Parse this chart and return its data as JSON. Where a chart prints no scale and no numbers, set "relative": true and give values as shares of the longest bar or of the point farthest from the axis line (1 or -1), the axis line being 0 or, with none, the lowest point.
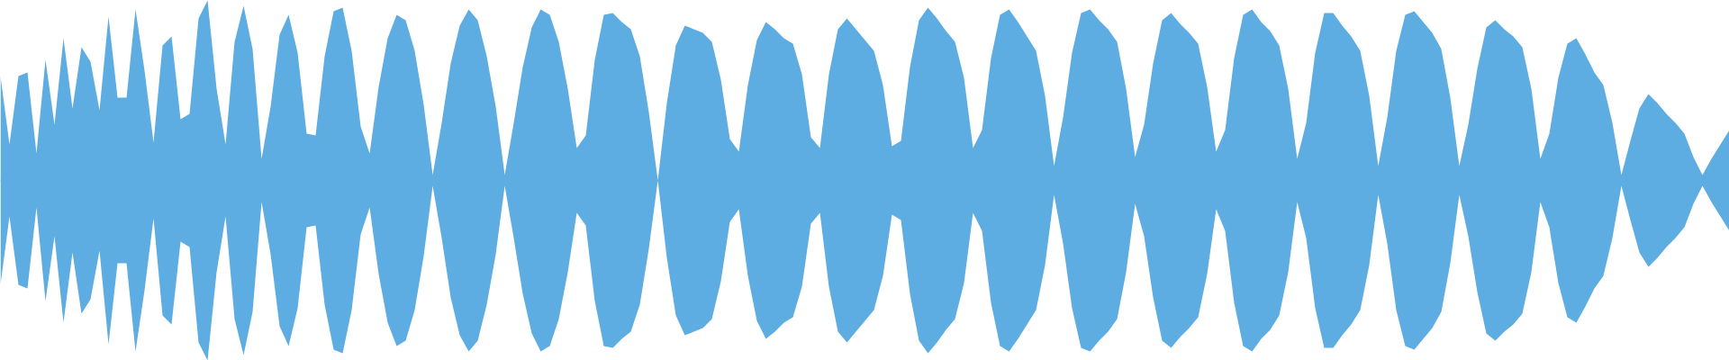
{
  "chart_data": {
    "type": "area",
    "relative": true,
    "ref_lines": [
      {
        "axis": "y",
        "value": 0,
        "color": "#5dade2"
      }
    ],
    "categories": [
      null,
      null,
      null,
      null,
      null,
      null,
      null,
      null,
      null,
      null,
      null,
      null,
      null,
      null,
      null,
      null,
      null,
      null,
      null,
      null,
      null,
      null,
      null,
      null,
      null,
      null,
      null,
      null,
      null,
      null,
      null,
      null,
      null,
      null,
      null,
      null,
      null,
      null,
      null,
      null,
      null,
      null,
      null,
      null,
      null,
      null,
      null,
      null,
      null,
      null,
      null,
      null,
      null,
      null,
      null,
      null,
      null,
      null,
      null,
      null,
      null,
      null,
      null,
      null,
      null,
      null,
      null,
      null,
      null,
      null,
      null,
      null,
      null,
      null,
      null,
      null,
      null,
      null,
      null,
      null,
      null,
      null,
      null,
      null,
      null,
      null,
      null,
      null,
      null,
      null,
      null,
      null,
      null,
      null,
      null,
      null,
      null,
      null,
      null,
      null,
      null,
      null,
      null,
      null,
      null,
      null,
      null,
      null,
      null,
      null,
      null,
      null,
      null,
      null,
      null,
      null,
      null,
      null,
      null,
      null,
      null,
      null,
      null,
      null,
      null,
      null,
      null,
      null,
      null,
      null,
      null,
      null,
      null,
      null,
      null,
      null,
      null,
      null,
      null,
      null,
      null,
      null,
      null,
      null,
      null,
      null,
      null,
      null,
      null,
      null,
      null,
      null,
      null,
      null,
      null,
      null,
      null,
      null,
      null,
      null,
      null,
      null,
      null,
      null,
      null,
      null,
      null,
      null,
      null,
      null,
      null,
      null,
      null,
      null,
      null,
      null,
      null,
      null,
      null,
      null,
      null,
      null,
      null,
      null,
      null,
      null,
      null,
      null,
      null,
      null,
      null,
      null,
      null
    ],
    "series": [
      {
        "color": "#5dade2",
        "values": [
          0.58,
          0.2,
          0.58,
          0.6,
          0.15,
          0.67,
          0.31,
          0.79,
          0.4,
          0.74,
          0.66,
          0.39,
          0.91,
          0.46,
          0.46,
          0.95,
          0.61,
          0.21,
          0.75,
          0.8,
          0.34,
          0.37,
          0.9,
          1.0,
          0.51,
          0.2,
          0.77,
          0.97,
          0.73,
          0.12,
          0.41,
          0.81,
          0.92,
          0.71,
          0.26,
          0.25,
          0.69,
          0.94,
          0.96,
          0.72,
          0.3,
          0.15,
          0.52,
          0.79,
          0.92,
          0.89,
          0.72,
          0.42,
          0.03,
          0.32,
          0.65,
          0.86,
          0.95,
          0.89,
          0.69,
          0.41,
          0.03,
          0.32,
          0.63,
          0.85,
          0.95,
          0.92,
          0.77,
          0.51,
          0.18,
          0.25,
          0.67,
          0.92,
          0.93,
          0.88,
          0.84,
          0.69,
          0.38,
          0,
          0.43,
          0.75,
          0.86,
          0.84,
          0.82,
          0.77,
          0.56,
          0.23,
          0.16,
          0.53,
          0.78,
          0.88,
          0.84,
          0.79,
          0.76,
          0.59,
          0.24,
          0.18,
          0.59,
          0.84,
          0.9,
          0.84,
          0.78,
          0.72,
          0.53,
          0.19,
          0.22,
          0.63,
          0.89,
          0.96,
          0.9,
          0.83,
          0.77,
          0.57,
          0.18,
          0.28,
          0.68,
          0.92,
          0.95,
          0.88,
          0.8,
          0.72,
          0.47,
          0.08,
          0.35,
          0.71,
          0.93,
          0.95,
          0.89,
          0.84,
          0.77,
          0.51,
          0.13,
          0.31,
          0.65,
          0.89,
          0.93,
          0.87,
          0.82,
          0.76,
          0.52,
          0.16,
          0.28,
          0.68,
          0.92,
          0.95,
          0.88,
          0.83,
          0.75,
          0.51,
          0.12,
          0.32,
          0.71,
          0.93,
          0.93,
          0.86,
          0.8,
          0.72,
          0.47,
          0.08,
          0.35,
          0.72,
          0.92,
          0.94,
          0.88,
          0.82,
          0.73,
          0.46,
          0.08,
          0.31,
          0.62,
          0.85,
          0.89,
          0.84,
          0.8,
          0.74,
          0.51,
          0.12,
          0.26,
          0.57,
          0.76,
          0.79,
          0.7,
          0.6,
          0.53,
          0.32,
          0.03,
          0.22,
          0.4,
          0.48,
          0.43,
          0.37,
          0.32,
          0.26,
          0.13,
          0.03,
          0.12,
          0.2,
          0.28
        ]
      },
      {
        "color": "#5dade2",
        "values": [
          -0.58,
          -0.2,
          -0.58,
          -0.6,
          -0.15,
          -0.67,
          -0.31,
          -0.79,
          -0.4,
          -0.74,
          -0.66,
          -0.39,
          -0.91,
          -0.46,
          -0.46,
          -0.95,
          -0.61,
          -0.21,
          -0.75,
          -0.8,
          -0.34,
          -0.37,
          -0.9,
          -1.0,
          -0.51,
          -0.2,
          -0.77,
          -0.97,
          -0.73,
          -0.12,
          -0.41,
          -0.81,
          -0.92,
          -0.71,
          -0.26,
          -0.25,
          -0.69,
          -0.94,
          -0.96,
          -0.72,
          -0.3,
          -0.15,
          -0.52,
          -0.79,
          -0.92,
          -0.89,
          -0.72,
          -0.42,
          -0.03,
          -0.32,
          -0.65,
          -0.86,
          -0.95,
          -0.89,
          -0.69,
          -0.41,
          -0.03,
          -0.32,
          -0.63,
          -0.85,
          -0.95,
          -0.92,
          -0.77,
          -0.51,
          -0.18,
          -0.25,
          -0.67,
          -0.92,
          -0.93,
          -0.88,
          -0.84,
          -0.69,
          -0.38,
          0,
          -0.43,
          -0.75,
          -0.86,
          -0.84,
          -0.82,
          -0.77,
          -0.56,
          -0.23,
          -0.16,
          -0.53,
          -0.78,
          -0.88,
          -0.84,
          -0.79,
          -0.76,
          -0.59,
          -0.24,
          -0.18,
          -0.59,
          -0.84,
          -0.9,
          -0.84,
          -0.78,
          -0.72,
          -0.53,
          -0.19,
          -0.22,
          -0.63,
          -0.89,
          -0.96,
          -0.9,
          -0.83,
          -0.77,
          -0.57,
          -0.18,
          -0.28,
          -0.68,
          -0.92,
          -0.95,
          -0.88,
          -0.8,
          -0.72,
          -0.47,
          -0.08,
          -0.35,
          -0.71,
          -0.93,
          -0.95,
          -0.89,
          -0.84,
          -0.77,
          -0.51,
          -0.13,
          -0.31,
          -0.65,
          -0.89,
          -0.93,
          -0.87,
          -0.82,
          -0.76,
          -0.52,
          -0.16,
          -0.28,
          -0.68,
          -0.92,
          -0.95,
          -0.88,
          -0.83,
          -0.75,
          -0.51,
          -0.12,
          -0.32,
          -0.71,
          -0.93,
          -0.93,
          -0.86,
          -0.8,
          -0.72,
          -0.47,
          -0.08,
          -0.35,
          -0.72,
          -0.92,
          -0.94,
          -0.88,
          -0.82,
          -0.73,
          -0.46,
          -0.08,
          -0.31,
          -0.62,
          -0.85,
          -0.89,
          -0.84,
          -0.8,
          -0.74,
          -0.51,
          -0.12,
          -0.26,
          -0.57,
          -0.76,
          -0.79,
          -0.7,
          -0.6,
          -0.53,
          -0.32,
          -0.03,
          -0.22,
          -0.4,
          -0.48,
          -0.43,
          -0.37,
          -0.32,
          -0.26,
          -0.13,
          -0.03,
          -0.12,
          -0.2,
          -0.28
        ]
      }
    ]
  }
}
